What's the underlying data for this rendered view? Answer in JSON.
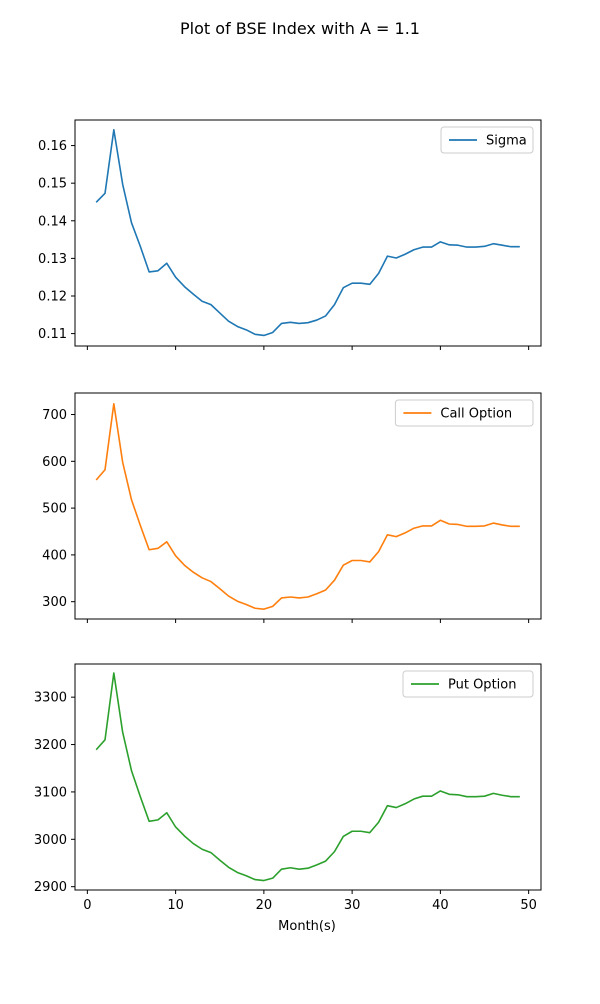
{
  "figure_title": "Plot of BSE Index with A = 1.1",
  "xlabel": "Month(s)",
  "x_ticks": [
    0,
    10,
    20,
    30,
    40,
    50
  ],
  "xlim": [
    -1.4,
    51.4
  ],
  "chart_data": [
    {
      "type": "line",
      "legend_placement": "top-right",
      "grid": false,
      "ylim": [
        0.1067,
        0.1668
      ],
      "y_ticks": [
        0.11,
        0.12,
        0.13,
        0.14,
        0.15,
        0.16
      ],
      "y_tick_labels": [
        "0.11",
        "0.12",
        "0.13",
        "0.14",
        "0.15",
        "0.16"
      ],
      "series": [
        {
          "name": "Sigma",
          "color": "#1f77b4",
          "x": [
            1,
            2,
            3,
            4,
            5,
            6,
            7,
            8,
            9,
            10,
            11,
            12,
            13,
            14,
            15,
            16,
            17,
            18,
            19,
            20,
            21,
            22,
            23,
            24,
            25,
            26,
            27,
            28,
            29,
            30,
            31,
            32,
            33,
            34,
            35,
            36,
            37,
            38,
            39,
            40,
            41,
            42,
            43,
            44,
            45,
            46,
            47,
            48,
            49
          ],
          "y": [
            0.1449,
            0.1473,
            0.1642,
            0.1497,
            0.1395,
            0.1332,
            0.1264,
            0.1267,
            0.1287,
            0.125,
            0.1225,
            0.1205,
            0.1186,
            0.1177,
            0.1155,
            0.1133,
            0.1119,
            0.111,
            0.1098,
            0.1095,
            0.1103,
            0.1127,
            0.113,
            0.1127,
            0.1129,
            0.1136,
            0.1147,
            0.1177,
            0.1222,
            0.1234,
            0.1234,
            0.1231,
            0.126,
            0.1306,
            0.1301,
            0.1311,
            0.1323,
            0.133,
            0.133,
            0.1344,
            0.1336,
            0.1335,
            0.133,
            0.133,
            0.1332,
            0.1339,
            0.1335,
            0.1331,
            0.1331
          ]
        }
      ]
    },
    {
      "type": "line",
      "legend_placement": "top-right",
      "grid": false,
      "ylim": [
        263,
        746
      ],
      "y_ticks": [
        300,
        400,
        500,
        600,
        700
      ],
      "y_tick_labels": [
        "300",
        "400",
        "500",
        "600",
        "700"
      ],
      "series": [
        {
          "name": "Call Option",
          "color": "#ff7f0e",
          "x": [
            1,
            2,
            3,
            4,
            5,
            6,
            7,
            8,
            9,
            10,
            11,
            12,
            13,
            14,
            15,
            16,
            17,
            18,
            19,
            20,
            21,
            22,
            23,
            24,
            25,
            26,
            27,
            28,
            29,
            30,
            31,
            32,
            33,
            34,
            35,
            36,
            37,
            38,
            39,
            40,
            41,
            42,
            43,
            44,
            45,
            46,
            47,
            48,
            49
          ],
          "y": [
            560,
            582,
            723,
            598,
            518,
            463,
            411,
            414,
            428,
            398,
            378,
            363,
            351,
            343,
            328,
            312,
            301,
            294,
            286,
            284,
            290,
            308,
            310,
            308,
            310,
            317,
            325,
            346,
            378,
            388,
            388,
            385,
            407,
            443,
            439,
            447,
            457,
            462,
            462,
            474,
            466,
            465,
            461,
            461,
            462,
            468,
            464,
            461,
            461
          ]
        }
      ]
    },
    {
      "type": "line",
      "legend_placement": "top-right",
      "grid": false,
      "ylim": [
        2893,
        3370
      ],
      "y_ticks": [
        2900,
        3000,
        3100,
        3200,
        3300
      ],
      "y_tick_labels": [
        "2900",
        "3000",
        "3100",
        "3200",
        "3300"
      ],
      "series": [
        {
          "name": "Put Option",
          "color": "#2ca02c",
          "x": [
            1,
            2,
            3,
            4,
            5,
            6,
            7,
            8,
            9,
            10,
            11,
            12,
            13,
            14,
            15,
            16,
            17,
            18,
            19,
            20,
            21,
            22,
            23,
            24,
            25,
            26,
            27,
            28,
            29,
            30,
            31,
            32,
            33,
            34,
            35,
            36,
            37,
            38,
            39,
            40,
            41,
            42,
            43,
            44,
            45,
            46,
            47,
            48,
            49
          ],
          "y": [
            3189,
            3210,
            3351,
            3226,
            3145,
            3090,
            3038,
            3041,
            3056,
            3026,
            3007,
            2991,
            2979,
            2972,
            2956,
            2941,
            2930,
            2923,
            2915,
            2913,
            2918,
            2937,
            2940,
            2937,
            2939,
            2946,
            2954,
            2974,
            3006,
            3017,
            3017,
            3014,
            3036,
            3071,
            3067,
            3075,
            3085,
            3091,
            3091,
            3102,
            3095,
            3094,
            3090,
            3090,
            3091,
            3097,
            3093,
            3090,
            3090
          ]
        }
      ]
    }
  ]
}
